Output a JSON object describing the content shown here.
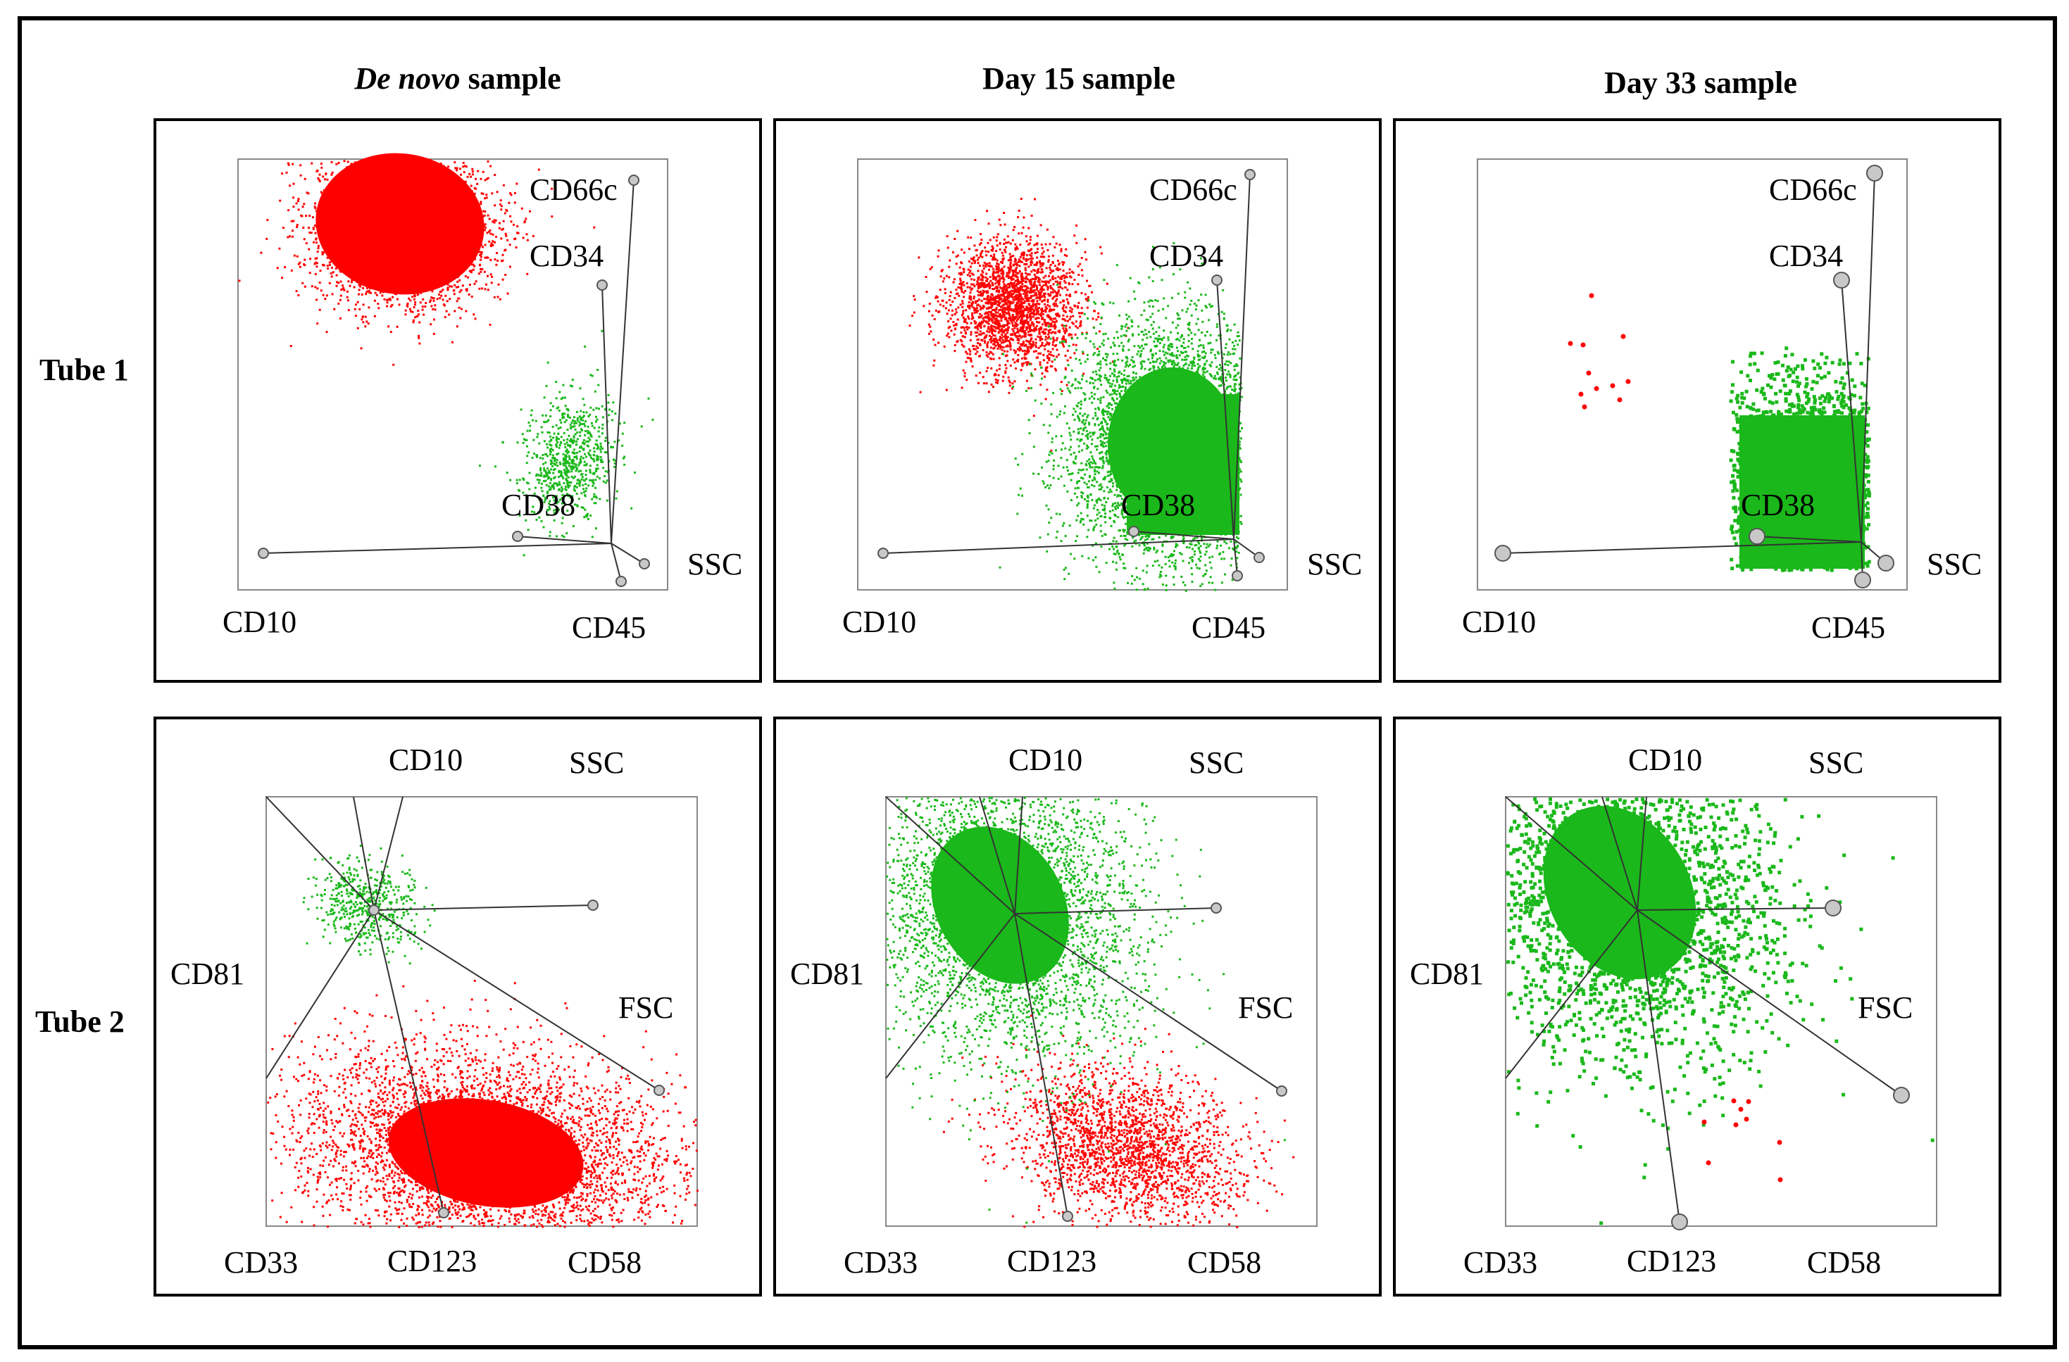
{
  "columns": [
    {
      "italic": "De novo",
      "rest": " sample"
    },
    {
      "italic": "",
      "rest": "Day 15 sample"
    },
    {
      "italic": "",
      "rest": "Day 33 sample"
    }
  ],
  "rows": [
    "Tube 1",
    "Tube 2"
  ],
  "tube1": {
    "labels": {
      "cd66c": "CD66c",
      "cd34": "CD34",
      "cd38": "CD38",
      "ssc": "SSC",
      "cd10": "CD10",
      "cd45": "CD45"
    }
  },
  "tube2": {
    "labels": {
      "cd10": "CD10",
      "ssc": "SSC",
      "cd81": "CD81",
      "fsc": "FSC",
      "cd33": "CD33",
      "cd123": "CD123",
      "cd58": "CD58"
    }
  },
  "colors": {
    "blast": "#ff0000",
    "normal": "#1ab81a",
    "anchor_fill": "#c8c8c8",
    "anchor_stroke": "#555555",
    "axis": "#333333",
    "frame": "#000000",
    "plot_border": "#888888"
  },
  "icons": {
    "anchor": "circle-anchor"
  }
}
